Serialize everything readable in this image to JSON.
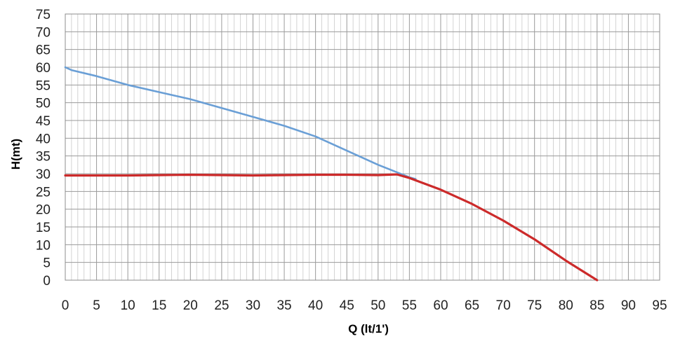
{
  "chart_data": {
    "type": "line",
    "title": "",
    "xlabel": "Q (lt/1')",
    "ylabel": "H(mt)",
    "xlim": [
      0,
      95
    ],
    "ylim": [
      0,
      75
    ],
    "x_ticks": [
      0,
      5,
      10,
      15,
      20,
      25,
      30,
      35,
      40,
      45,
      50,
      55,
      60,
      65,
      70,
      75,
      80,
      85,
      90,
      95
    ],
    "y_ticks": [
      0,
      5,
      10,
      15,
      20,
      25,
      30,
      35,
      40,
      45,
      50,
      55,
      60,
      65,
      70,
      75
    ],
    "grid": true,
    "legend": "none",
    "series": [
      {
        "color": "#6a9fd6",
        "x": [
          0,
          1,
          5,
          10,
          15,
          20,
          25,
          30,
          35,
          40,
          45,
          50,
          55,
          56
        ],
        "y": [
          60,
          59.2,
          57.5,
          55,
          53,
          51,
          48.5,
          46,
          43.5,
          40.5,
          36.5,
          32.5,
          29,
          28.5
        ]
      },
      {
        "color": "#cc2a2a",
        "x": [
          0,
          5,
          10,
          15,
          20,
          25,
          30,
          35,
          40,
          45,
          50,
          53,
          55,
          60,
          65,
          70,
          75,
          80,
          85
        ],
        "y": [
          29.5,
          29.5,
          29.5,
          29.6,
          29.7,
          29.6,
          29.5,
          29.6,
          29.7,
          29.7,
          29.6,
          29.8,
          28.8,
          25.5,
          21.5,
          16.8,
          11.5,
          5.5,
          0
        ]
      }
    ]
  }
}
